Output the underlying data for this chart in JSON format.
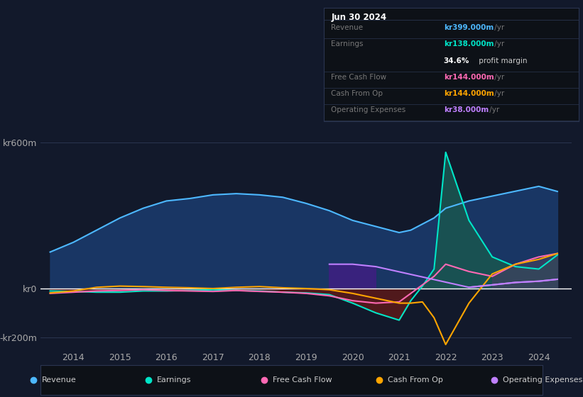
{
  "bg_color": "#12192b",
  "plot_bg_color": "#12192b",
  "grid_color": "#2a3550",
  "zero_line_color": "#ffffff",
  "title_box": {
    "date": "Jun 30 2024",
    "rows": [
      {
        "label": "Revenue",
        "value": "kr399.000m /yr",
        "value_color": "#4db8ff"
      },
      {
        "label": "Earnings",
        "value": "kr138.000m /yr",
        "value_color": "#00e5c8"
      },
      {
        "label": "",
        "value": "34.6% profit margin",
        "value_color": "#ffffff"
      },
      {
        "label": "Free Cash Flow",
        "value": "kr144.000m /yr",
        "value_color": "#ff69b4"
      },
      {
        "label": "Cash From Op",
        "value": "kr144.000m /yr",
        "value_color": "#ffa500"
      },
      {
        "label": "Operating Expenses",
        "value": "kr38.000m /yr",
        "value_color": "#bf80ff"
      }
    ]
  },
  "legend": [
    {
      "label": "Revenue",
      "color": "#4db8ff"
    },
    {
      "label": "Earnings",
      "color": "#00e5c8"
    },
    {
      "label": "Free Cash Flow",
      "color": "#ff69b4"
    },
    {
      "label": "Cash From Op",
      "color": "#ffa500"
    },
    {
      "label": "Operating Expenses",
      "color": "#bf80ff"
    }
  ],
  "ylim": [
    -250,
    680
  ],
  "yticks": [
    -200,
    0,
    600
  ],
  "ytick_labels": [
    "-kr200m",
    "kr0",
    "kr600m"
  ],
  "years": [
    2013.5,
    2014.0,
    2014.5,
    2015.0,
    2015.5,
    2016.0,
    2016.5,
    2017.0,
    2017.5,
    2018.0,
    2018.5,
    2019.0,
    2019.5,
    2020.0,
    2020.5,
    2021.0,
    2021.25,
    2021.5,
    2021.75,
    2022.0,
    2022.5,
    2023.0,
    2023.5,
    2024.0,
    2024.4
  ],
  "revenue": [
    150,
    190,
    240,
    290,
    330,
    360,
    370,
    385,
    390,
    385,
    375,
    350,
    320,
    280,
    255,
    230,
    240,
    265,
    290,
    330,
    360,
    380,
    400,
    420,
    399
  ],
  "earnings": [
    -10,
    -12,
    -15,
    -15,
    -10,
    -10,
    -8,
    -5,
    -8,
    -10,
    -15,
    -18,
    -25,
    -60,
    -100,
    -130,
    -50,
    10,
    80,
    560,
    280,
    130,
    90,
    80,
    138
  ],
  "fcf": [
    -20,
    -15,
    -10,
    -8,
    -5,
    -8,
    -10,
    -12,
    -8,
    -12,
    -15,
    -20,
    -30,
    -50,
    -60,
    -55,
    -20,
    15,
    50,
    100,
    70,
    50,
    100,
    130,
    144
  ],
  "cashfromop": [
    -18,
    -10,
    5,
    10,
    8,
    5,
    3,
    0,
    5,
    8,
    3,
    0,
    -5,
    -20,
    -40,
    -60,
    -60,
    -55,
    -120,
    -230,
    -60,
    60,
    100,
    120,
    144
  ],
  "opex": [
    0,
    0,
    0,
    0,
    0,
    0,
    0,
    0,
    0,
    0,
    0,
    0,
    100,
    100,
    90,
    0,
    0,
    0,
    0,
    0,
    5,
    15,
    25,
    30,
    38
  ],
  "xtick_years": [
    2014,
    2015,
    2016,
    2017,
    2018,
    2019,
    2020,
    2021,
    2022,
    2023,
    2024
  ],
  "xlim": [
    2013.3,
    2024.7
  ]
}
